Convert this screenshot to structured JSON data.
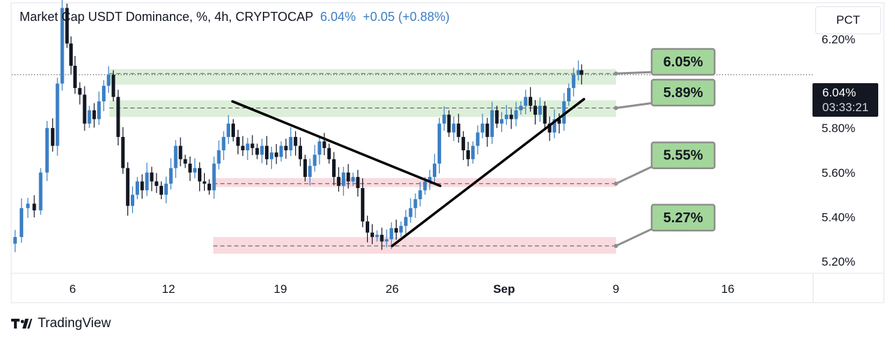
{
  "header": {
    "title": "Market Cap USDT Dominance, %, 4h, CRYPTOCAP",
    "last_value": "6.04%",
    "change": "+0.05 (+0.88%)"
  },
  "scale_button": "PCT",
  "brand": "TradingView",
  "price_tag": {
    "value": "6.04%",
    "countdown": "03:33:21"
  },
  "colors": {
    "candle": "#3b7fc4",
    "candle_dark": "#131722",
    "support_zone": "#d6ecd2",
    "resistance_zone": "#f8d4d9",
    "callout_fill": "#a3d69a",
    "callout_border": "#8e8e8e",
    "trendline": "#000000",
    "axis_text": "#131722"
  },
  "chart_data": {
    "type": "candlestick",
    "title": "Market Cap USDT Dominance, %, 4h, CRYPTOCAP",
    "ylim": [
      5.15,
      6.36
    ],
    "y_ticks": [
      "6.20%",
      "5.80%",
      "5.60%",
      "5.40%",
      "5.20%"
    ],
    "y_tick_values": [
      6.2,
      5.8,
      5.6,
      5.4,
      5.2
    ],
    "x_ticks": [
      "6",
      "12",
      "19",
      "26",
      "Sep",
      "9",
      "16"
    ],
    "x_tick_days": [
      6,
      12,
      19,
      26,
      33,
      40,
      47
    ],
    "xlim_days": [
      2.2,
      52.3
    ],
    "last_price": 6.04,
    "levels": [
      {
        "label": "6.05%",
        "value": 6.05,
        "kind": "support",
        "zone": [
          5.995,
          6.065
        ]
      },
      {
        "label": "5.89%",
        "value": 5.89,
        "kind": "support",
        "zone": [
          5.85,
          5.925
        ]
      },
      {
        "label": "5.55%",
        "value": 5.55,
        "kind": "resistance",
        "zone": [
          5.535,
          5.575
        ]
      },
      {
        "label": "5.27%",
        "value": 5.27,
        "kind": "resistance",
        "zone": [
          5.235,
          5.31
        ]
      }
    ],
    "trendlines": [
      {
        "from": [
          16.0,
          5.92
        ],
        "to": [
          29.0,
          5.54
        ]
      },
      {
        "from": [
          26.0,
          5.27
        ],
        "to": [
          38.0,
          5.93
        ]
      }
    ],
    "price_path": [
      [
        2.2,
        5.28
      ],
      [
        2.6,
        5.31
      ],
      [
        3.0,
        5.44
      ],
      [
        3.4,
        5.46
      ],
      [
        3.8,
        5.43
      ],
      [
        4.2,
        5.6
      ],
      [
        4.6,
        5.8
      ],
      [
        4.9,
        5.72
      ],
      [
        5.2,
        6.0
      ],
      [
        5.5,
        6.34
      ],
      [
        5.8,
        6.18
      ],
      [
        6.0,
        6.08
      ],
      [
        6.3,
        5.98
      ],
      [
        6.6,
        5.95
      ],
      [
        6.9,
        5.82
      ],
      [
        7.2,
        5.88
      ],
      [
        7.5,
        5.84
      ],
      [
        7.8,
        5.92
      ],
      [
        8.1,
        5.99
      ],
      [
        8.4,
        6.04
      ],
      [
        8.7,
        5.94
      ],
      [
        9.0,
        5.76
      ],
      [
        9.3,
        5.62
      ],
      [
        9.6,
        5.45
      ],
      [
        9.9,
        5.5
      ],
      [
        10.2,
        5.56
      ],
      [
        10.5,
        5.52
      ],
      [
        10.8,
        5.6
      ],
      [
        11.1,
        5.56
      ],
      [
        11.4,
        5.54
      ],
      [
        11.7,
        5.5
      ],
      [
        12.0,
        5.55
      ],
      [
        12.3,
        5.62
      ],
      [
        12.6,
        5.72
      ],
      [
        12.9,
        5.66
      ],
      [
        13.2,
        5.64
      ],
      [
        13.5,
        5.6
      ],
      [
        13.8,
        5.62
      ],
      [
        14.1,
        5.56
      ],
      [
        14.4,
        5.55
      ],
      [
        14.7,
        5.52
      ],
      [
        15.0,
        5.64
      ],
      [
        15.3,
        5.7
      ],
      [
        15.6,
        5.76
      ],
      [
        15.9,
        5.82
      ],
      [
        16.2,
        5.76
      ],
      [
        16.5,
        5.72
      ],
      [
        16.8,
        5.7
      ],
      [
        17.1,
        5.73
      ],
      [
        17.4,
        5.71
      ],
      [
        17.7,
        5.68
      ],
      [
        18.0,
        5.72
      ],
      [
        18.3,
        5.66
      ],
      [
        18.6,
        5.69
      ],
      [
        18.9,
        5.67
      ],
      [
        19.2,
        5.72
      ],
      [
        19.5,
        5.7
      ],
      [
        19.8,
        5.76
      ],
      [
        20.1,
        5.72
      ],
      [
        20.4,
        5.66
      ],
      [
        20.7,
        5.58
      ],
      [
        21.0,
        5.63
      ],
      [
        21.3,
        5.68
      ],
      [
        21.6,
        5.74
      ],
      [
        21.9,
        5.71
      ],
      [
        22.2,
        5.66
      ],
      [
        22.5,
        5.58
      ],
      [
        22.8,
        5.54
      ],
      [
        23.1,
        5.6
      ],
      [
        23.4,
        5.56
      ],
      [
        23.7,
        5.58
      ],
      [
        24.0,
        5.53
      ],
      [
        24.3,
        5.38
      ],
      [
        24.6,
        5.33
      ],
      [
        24.9,
        5.31
      ],
      [
        25.2,
        5.32
      ],
      [
        25.5,
        5.29
      ],
      [
        25.8,
        5.3
      ],
      [
        26.1,
        5.35
      ],
      [
        26.4,
        5.33
      ],
      [
        26.7,
        5.36
      ],
      [
        27.0,
        5.4
      ],
      [
        27.3,
        5.44
      ],
      [
        27.6,
        5.48
      ],
      [
        27.9,
        5.52
      ],
      [
        28.2,
        5.56
      ],
      [
        28.5,
        5.58
      ],
      [
        28.8,
        5.64
      ],
      [
        29.1,
        5.82
      ],
      [
        29.4,
        5.86
      ],
      [
        29.7,
        5.78
      ],
      [
        30.0,
        5.82
      ],
      [
        30.3,
        5.76
      ],
      [
        30.6,
        5.7
      ],
      [
        30.9,
        5.66
      ],
      [
        31.2,
        5.72
      ],
      [
        31.5,
        5.78
      ],
      [
        31.8,
        5.82
      ],
      [
        32.1,
        5.76
      ],
      [
        32.4,
        5.88
      ],
      [
        32.7,
        5.82
      ],
      [
        33.0,
        5.84
      ],
      [
        33.3,
        5.86
      ],
      [
        33.6,
        5.84
      ],
      [
        33.9,
        5.88
      ],
      [
        34.2,
        5.9
      ],
      [
        34.5,
        5.94
      ],
      [
        34.8,
        5.9
      ],
      [
        35.1,
        5.86
      ],
      [
        35.4,
        5.9
      ],
      [
        35.7,
        5.82
      ],
      [
        36.0,
        5.78
      ],
      [
        36.3,
        5.84
      ],
      [
        36.6,
        5.82
      ],
      [
        36.9,
        5.92
      ],
      [
        37.2,
        5.98
      ],
      [
        37.5,
        6.04
      ],
      [
        37.8,
        6.06
      ],
      [
        37.9,
        6.04
      ]
    ]
  }
}
